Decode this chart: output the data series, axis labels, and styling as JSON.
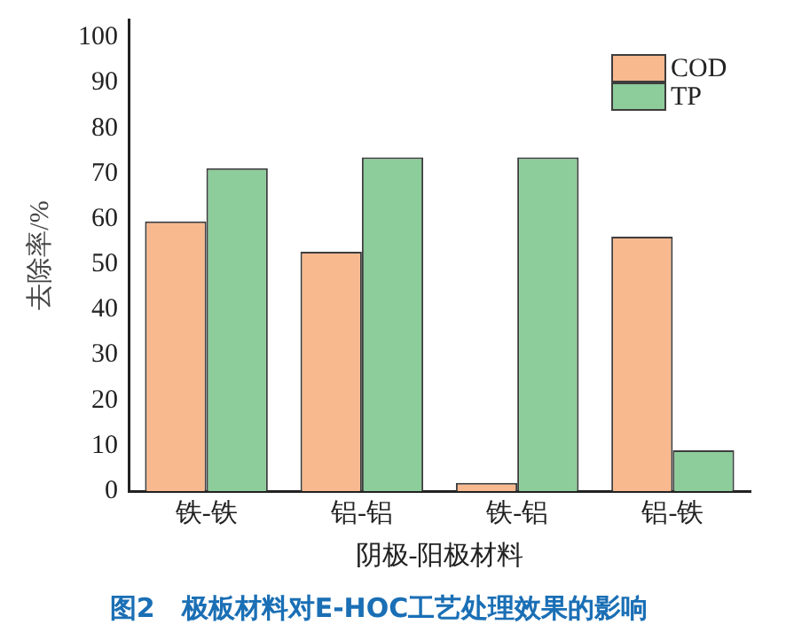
{
  "chart_data": {
    "type": "bar",
    "title": "图2　极板材料对E-HOC工艺处理效果的影响",
    "xlabel": "阴极-阳极材料",
    "ylabel": "去除率/%",
    "categories": [
      "铁-铁",
      "铝-铝",
      "铁-铝",
      "铝-铁"
    ],
    "series": [
      {
        "name": "COD",
        "color": "#f8b98f",
        "values": [
          59.5,
          52.8,
          1.8,
          56.1
        ]
      },
      {
        "name": "TP",
        "color": "#8dcc9b",
        "values": [
          71.2,
          73.6,
          73.6,
          9.0
        ]
      }
    ],
    "ylim": [
      0,
      104
    ],
    "yticks": [
      0,
      10,
      20,
      30,
      40,
      50,
      60,
      70,
      80,
      90,
      100
    ],
    "grid": false,
    "legend": "top right"
  }
}
